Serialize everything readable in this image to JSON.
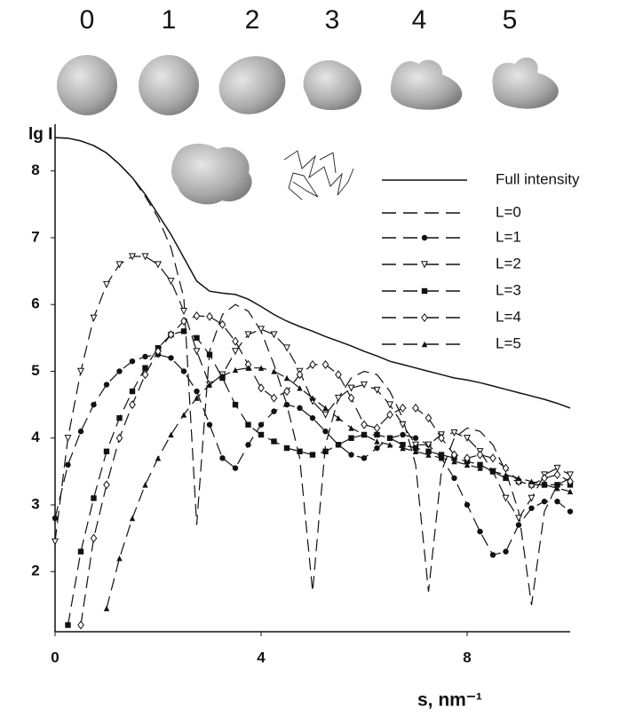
{
  "chart_data": {
    "type": "line",
    "shape_labels": [
      "0",
      "1",
      "2",
      "3",
      "4",
      "5"
    ],
    "ylabel": "lg I",
    "xlabel": "s, nm⁻¹",
    "xlim": [
      0,
      10
    ],
    "ylim": [
      1.1,
      8.7
    ],
    "xticks": [
      0,
      4,
      8
    ],
    "yticks": [
      2,
      3,
      4,
      5,
      6,
      7,
      8
    ],
    "x": [
      0,
      0.25,
      0.5,
      0.75,
      1,
      1.25,
      1.5,
      1.75,
      2,
      2.25,
      2.5,
      2.75,
      3,
      3.25,
      3.5,
      3.75,
      4,
      4.25,
      4.5,
      4.75,
      5,
      5.25,
      5.5,
      5.75,
      6,
      6.25,
      6.5,
      6.75,
      7,
      7.25,
      7.5,
      7.75,
      8,
      8.25,
      8.5,
      8.75,
      9,
      9.25,
      9.5,
      9.75,
      10
    ],
    "series": [
      {
        "name": "Full intensity",
        "color": "#111111",
        "dash": false,
        "marker": "none",
        "values": [
          8.5,
          8.49,
          8.45,
          8.38,
          8.27,
          8.1,
          7.9,
          7.65,
          7.35,
          7.05,
          6.7,
          6.35,
          6.2,
          6.17,
          6.15,
          6.08,
          5.97,
          5.85,
          5.75,
          5.67,
          5.6,
          5.52,
          5.45,
          5.38,
          5.3,
          5.23,
          5.15,
          5.1,
          5.05,
          5.0,
          4.95,
          4.9,
          4.87,
          4.83,
          4.78,
          4.73,
          4.68,
          4.63,
          4.58,
          4.52,
          4.45
        ]
      },
      {
        "name": "L=0",
        "color": "#111111",
        "dash": true,
        "marker": "none",
        "values": [
          8.5,
          8.49,
          8.45,
          8.38,
          8.27,
          8.1,
          7.9,
          7.62,
          7.3,
          6.85,
          6.1,
          2.7,
          5.3,
          5.85,
          6.0,
          5.9,
          5.6,
          5.1,
          4.5,
          3.7,
          1.7,
          3.9,
          4.6,
          4.9,
          5.0,
          4.95,
          4.7,
          4.3,
          3.6,
          1.7,
          3.5,
          4.0,
          4.15,
          4.1,
          3.9,
          3.5,
          2.9,
          1.5,
          2.9,
          3.3,
          3.4
        ]
      },
      {
        "name": "L=1",
        "color": "#111111",
        "dash": true,
        "marker": "circle",
        "values": [
          2.8,
          3.6,
          4.1,
          4.5,
          4.8,
          5.0,
          5.15,
          5.22,
          5.25,
          5.2,
          5.0,
          4.7,
          4.2,
          3.7,
          3.55,
          3.9,
          4.2,
          4.4,
          4.5,
          4.45,
          4.3,
          4.1,
          3.9,
          3.75,
          3.7,
          3.85,
          4.0,
          4.05,
          4.0,
          3.9,
          3.7,
          3.4,
          3.0,
          2.6,
          2.25,
          2.3,
          2.7,
          2.95,
          3.05,
          3.05,
          2.9
        ]
      },
      {
        "name": "L=2",
        "color": "#111111",
        "dash": true,
        "marker": "triangle-down",
        "values": [
          2.45,
          4.0,
          5.0,
          5.8,
          6.3,
          6.6,
          6.72,
          6.72,
          6.6,
          6.35,
          5.9,
          5.3,
          4.8,
          4.95,
          5.3,
          5.55,
          5.63,
          5.55,
          5.35,
          5.0,
          4.55,
          4.35,
          4.6,
          4.75,
          4.8,
          4.72,
          4.5,
          4.2,
          3.9,
          3.9,
          4.05,
          4.08,
          4.0,
          3.8,
          3.5,
          3.1,
          2.8,
          3.1,
          3.45,
          3.55,
          3.45
        ]
      },
      {
        "name": "L=3",
        "color": "#111111",
        "dash": true,
        "marker": "square",
        "values": [
          null,
          1.2,
          2.3,
          3.1,
          3.8,
          4.3,
          4.7,
          5.05,
          5.35,
          5.55,
          5.6,
          5.5,
          5.25,
          4.9,
          4.5,
          4.2,
          4.05,
          3.95,
          3.85,
          3.8,
          3.75,
          3.8,
          3.9,
          4.0,
          4.05,
          4.05,
          4.0,
          3.9,
          3.85,
          3.8,
          3.75,
          3.7,
          3.65,
          3.6,
          3.5,
          3.4,
          3.35,
          3.3,
          3.3,
          3.3,
          3.3
        ]
      },
      {
        "name": "L=4",
        "color": "#111111",
        "dash": true,
        "marker": "diamond",
        "values": [
          null,
          null,
          1.2,
          2.5,
          3.3,
          4.0,
          4.5,
          4.95,
          5.3,
          5.55,
          5.75,
          5.83,
          5.82,
          5.7,
          5.45,
          5.1,
          4.75,
          4.6,
          4.7,
          4.95,
          5.1,
          5.1,
          4.95,
          4.6,
          4.2,
          4.15,
          4.35,
          4.45,
          4.45,
          4.3,
          4.0,
          3.75,
          3.7,
          3.75,
          3.7,
          3.55,
          3.35,
          3.3,
          3.4,
          3.45,
          3.35
        ]
      },
      {
        "name": "L=5",
        "color": "#111111",
        "dash": true,
        "marker": "triangle-up",
        "values": [
          null,
          null,
          null,
          null,
          1.45,
          2.2,
          2.8,
          3.3,
          3.7,
          4.05,
          4.35,
          4.6,
          4.8,
          4.93,
          5.02,
          5.05,
          5.05,
          5.0,
          4.9,
          4.75,
          4.6,
          4.45,
          4.3,
          4.15,
          4.05,
          3.95,
          3.9,
          3.85,
          3.8,
          3.75,
          3.7,
          3.65,
          3.6,
          3.55,
          3.5,
          3.45,
          3.4,
          3.35,
          3.3,
          3.25,
          3.2
        ]
      }
    ]
  }
}
